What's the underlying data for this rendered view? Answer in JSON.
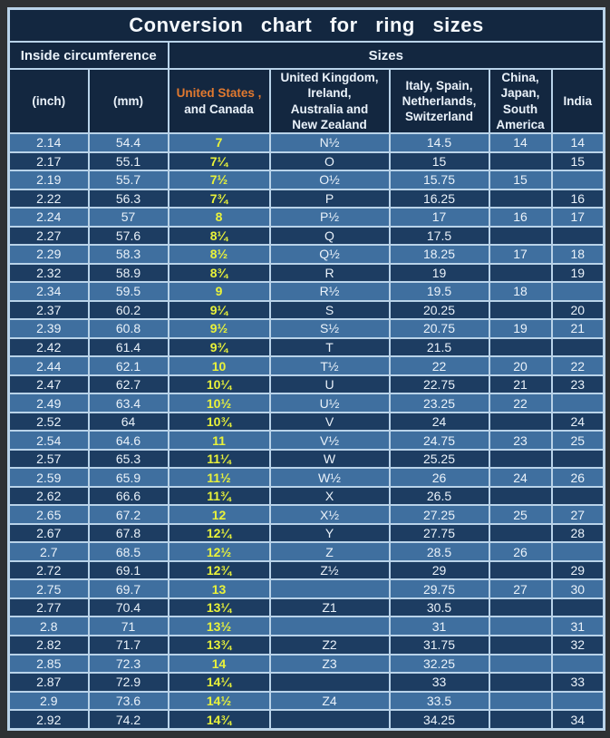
{
  "title": "Conversion  chart  for  ring  sizes",
  "sections": {
    "inside_circumference": "Inside circumference",
    "sizes": "Sizes"
  },
  "columns": [
    {
      "label": "(inch)"
    },
    {
      "label": "(mm)"
    },
    {
      "label_accent": "United States ,",
      "label_rest": "and Canada"
    },
    {
      "label": "United Kingdom,\nIreland,\nAustralia and\nNew Zealand"
    },
    {
      "label": "Italy,  Spain,\nNetherlands,\nSwitzerland"
    },
    {
      "label": "China,\nJapan,\nSouth\nAmerica"
    },
    {
      "label": "India"
    }
  ],
  "colors": {
    "page_background": "#2e3134",
    "header_background": "#132740",
    "row_light": "#3f6f9f",
    "row_dark": "#1d3d62",
    "grid_line": "#b9d3e9",
    "text": "#eaf2fa",
    "us_header_orange": "#e2792f",
    "us_size_yellow": "#e9f23a"
  },
  "chart_data": {
    "type": "table",
    "title": "Conversion chart for ring sizes",
    "column_groups": [
      {
        "label": "Inside circumference",
        "span": 2
      },
      {
        "label": "Sizes",
        "span": 5
      }
    ],
    "columns": [
      "(inch)",
      "(mm)",
      "United States, and Canada",
      "United Kingdom, Ireland, Australia and New Zealand",
      "Italy, Spain, Netherlands, Switzerland",
      "China, Japan, South America",
      "India"
    ],
    "rows": [
      [
        "2.14",
        "54.4",
        "7",
        "N½",
        "14.5",
        "14",
        "14"
      ],
      [
        "2.17",
        "55.1",
        "7¼",
        "O",
        "15",
        "",
        "15"
      ],
      [
        "2.19",
        "55.7",
        "7½",
        "O½",
        "15.75",
        "15",
        ""
      ],
      [
        "2.22",
        "56.3",
        "7¾",
        "P",
        "16.25",
        "",
        "16"
      ],
      [
        "2.24",
        "57",
        "8",
        "P½",
        "17",
        "16",
        "17"
      ],
      [
        "2.27",
        "57.6",
        "8¼",
        "Q",
        "17.5",
        "",
        ""
      ],
      [
        "2.29",
        "58.3",
        "8½",
        "Q½",
        "18.25",
        "17",
        "18"
      ],
      [
        "2.32",
        "58.9",
        "8¾",
        "R",
        "19",
        "",
        "19"
      ],
      [
        "2.34",
        "59.5",
        "9",
        "R½",
        "19.5",
        "18",
        ""
      ],
      [
        "2.37",
        "60.2",
        "9¼",
        "S",
        "20.25",
        "",
        "20"
      ],
      [
        "2.39",
        "60.8",
        "9½",
        "S½",
        "20.75",
        "19",
        "21"
      ],
      [
        "2.42",
        "61.4",
        "9¾",
        "T",
        "21.5",
        "",
        ""
      ],
      [
        "2.44",
        "62.1",
        "10",
        "T½",
        "22",
        "20",
        "22"
      ],
      [
        "2.47",
        "62.7",
        "10¼",
        "U",
        "22.75",
        "21",
        "23"
      ],
      [
        "2.49",
        "63.4",
        "10½",
        "U½",
        "23.25",
        "22",
        ""
      ],
      [
        "2.52",
        "64",
        "10¾",
        "V",
        "24",
        "",
        "24"
      ],
      [
        "2.54",
        "64.6",
        "11",
        "V½",
        "24.75",
        "23",
        "25"
      ],
      [
        "2.57",
        "65.3",
        "11¼",
        "W",
        "25.25",
        "",
        ""
      ],
      [
        "2.59",
        "65.9",
        "11½",
        "W½",
        "26",
        "24",
        "26"
      ],
      [
        "2.62",
        "66.6",
        "11¾",
        "X",
        "26.5",
        "",
        ""
      ],
      [
        "2.65",
        "67.2",
        "12",
        "X½",
        "27.25",
        "25",
        "27"
      ],
      [
        "2.67",
        "67.8",
        "12¼",
        "Y",
        "27.75",
        "",
        "28"
      ],
      [
        "2.7",
        "68.5",
        "12½",
        "Z",
        "28.5",
        "26",
        ""
      ],
      [
        "2.72",
        "69.1",
        "12¾",
        "Z½",
        "29",
        "",
        "29"
      ],
      [
        "2.75",
        "69.7",
        "13",
        "",
        "29.75",
        "27",
        "30"
      ],
      [
        "2.77",
        "70.4",
        "13¼",
        "Z1",
        "30.5",
        "",
        ""
      ],
      [
        "2.8",
        "71",
        "13½",
        "",
        "31",
        "",
        "31"
      ],
      [
        "2.82",
        "71.7",
        "13¾",
        "Z2",
        "31.75",
        "",
        "32"
      ],
      [
        "2.85",
        "72.3",
        "14",
        "Z3",
        "32.25",
        "",
        ""
      ],
      [
        "2.87",
        "72.9",
        "14¼",
        "",
        "33",
        "",
        "33"
      ],
      [
        "2.9",
        "73.6",
        "14½",
        "Z4",
        "33.5",
        "",
        ""
      ],
      [
        "2.92",
        "74.2",
        "14¾",
        "",
        "34.25",
        "",
        "34"
      ]
    ]
  }
}
